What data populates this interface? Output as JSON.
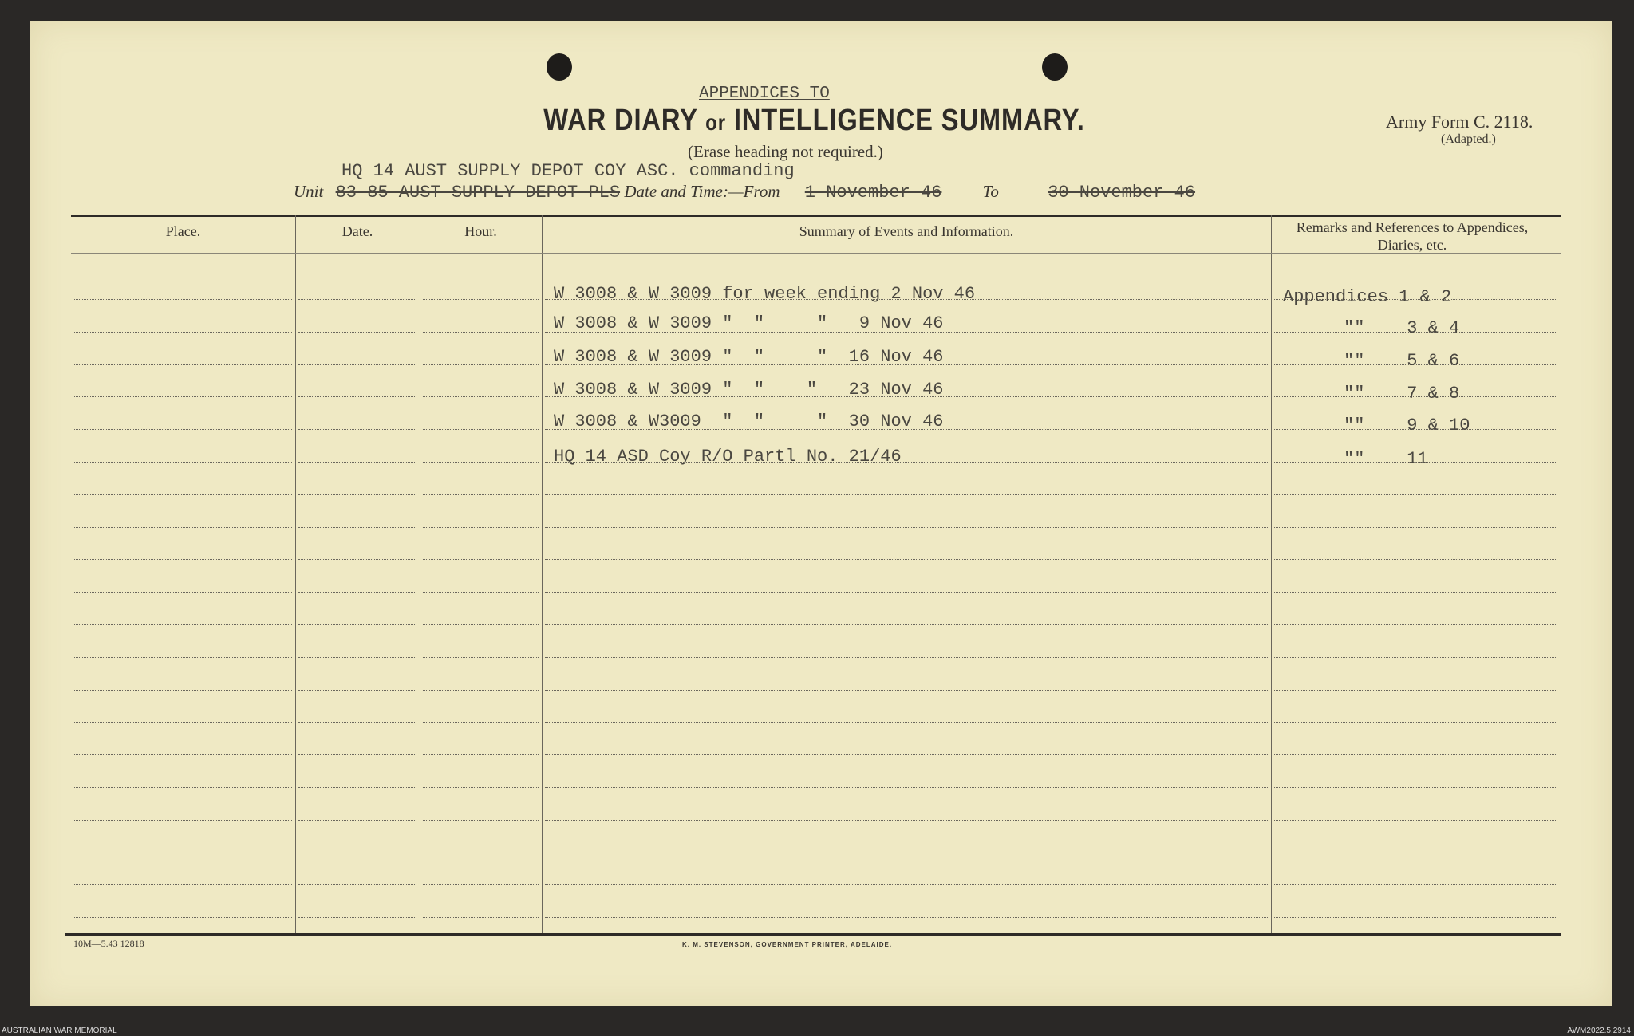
{
  "header": {
    "appendices_to": "APPENDICES TO",
    "title_part1": "WAR DIARY",
    "title_or": "or",
    "title_part2": "INTELLIGENCE SUMMARY.",
    "erase_note": "(Erase heading not required.)",
    "army_form": "Army Form C. 2118.",
    "adapted": "(Adapted.)",
    "commanding_line": "HQ 14 AUST SUPPLY DEPOT COY ASC. commanding",
    "unit_label": "Unit",
    "unit_value": "83-85 AUST SUPPLY DEPOT PLS",
    "date_time_label": "Date and Time:—From",
    "from_value": "1 November 46",
    "to_label": "To",
    "to_value": "30 November 46"
  },
  "columns": [
    "Place.",
    "Date.",
    "Hour.",
    "Summary of Events and Information.",
    "Remarks and References to Appendices, Diaries, etc."
  ],
  "entries": [
    {
      "summary": "W 3008 & W 3009 for week ending 2 Nov 46",
      "remarks": "Appendices 1 & 2"
    },
    {
      "summary": "W 3008 & W 3009 \"  \"     \"   9 Nov 46",
      "remarks": "\"\"    3 & 4"
    },
    {
      "summary": "W 3008 & W 3009 \"  \"     \"  16 Nov 46",
      "remarks": "\"\"    5 & 6"
    },
    {
      "summary": "W 3008 & W 3009 \"  \"    \"   23 Nov 46",
      "remarks": "\"\"    7 & 8"
    },
    {
      "summary": "W 3008 & W3009  \"  \"     \"  30 Nov 46",
      "remarks": "\"\"    9 & 10"
    },
    {
      "summary": "HQ 14 ASD Coy R/O Partl No. 21/46",
      "remarks": "\"\"    11"
    }
  ],
  "footer": {
    "form_code": "10M—5.43  12818",
    "printer": "K. M. STEVENSON, GOVERNMENT PRINTER, ADELAIDE.",
    "archive_left": "AUSTRALIAN WAR MEMORIAL",
    "archive_right": "AWM2022.5.2914"
  }
}
